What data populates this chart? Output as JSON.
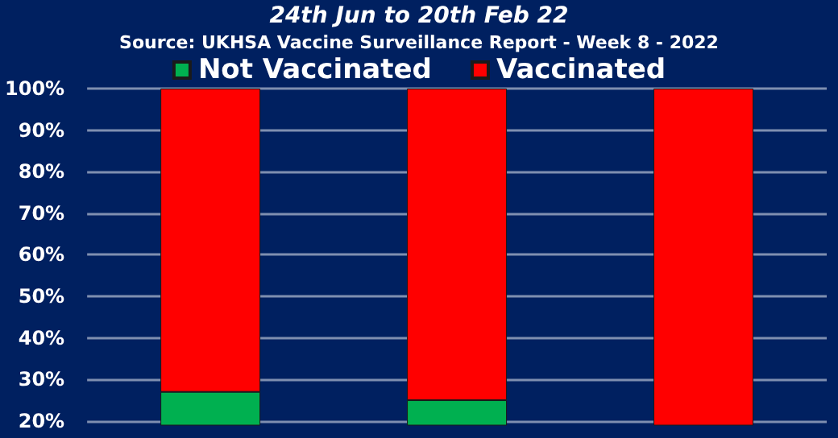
{
  "chart_data": {
    "type": "bar",
    "title": "24th Jun to 20th Feb 22",
    "subtitle": "Source: UKHSA Vaccine Surveillance Report - Week 8 - 2022",
    "categories": [
      null,
      null,
      null
    ],
    "stacked": true,
    "series": [
      {
        "name": "Not Vaccinated",
        "color": "#00b050",
        "values": [
          27,
          25,
          null
        ]
      },
      {
        "name": "Vaccinated",
        "color": "#ff0000",
        "values": [
          73,
          75,
          100
        ]
      }
    ],
    "ylim": [
      19,
      100
    ],
    "yticks": [
      {
        "value": 20,
        "label": "20%"
      },
      {
        "value": 30,
        "label": "30%"
      },
      {
        "value": 40,
        "label": "40%"
      },
      {
        "value": 50,
        "label": "50%"
      },
      {
        "value": 60,
        "label": "60%"
      },
      {
        "value": 70,
        "label": "70%"
      },
      {
        "value": 80,
        "label": "80%"
      },
      {
        "value": 90,
        "label": "90%"
      },
      {
        "value": 100,
        "label": "100%"
      }
    ],
    "grid": "y",
    "legend": "top"
  }
}
